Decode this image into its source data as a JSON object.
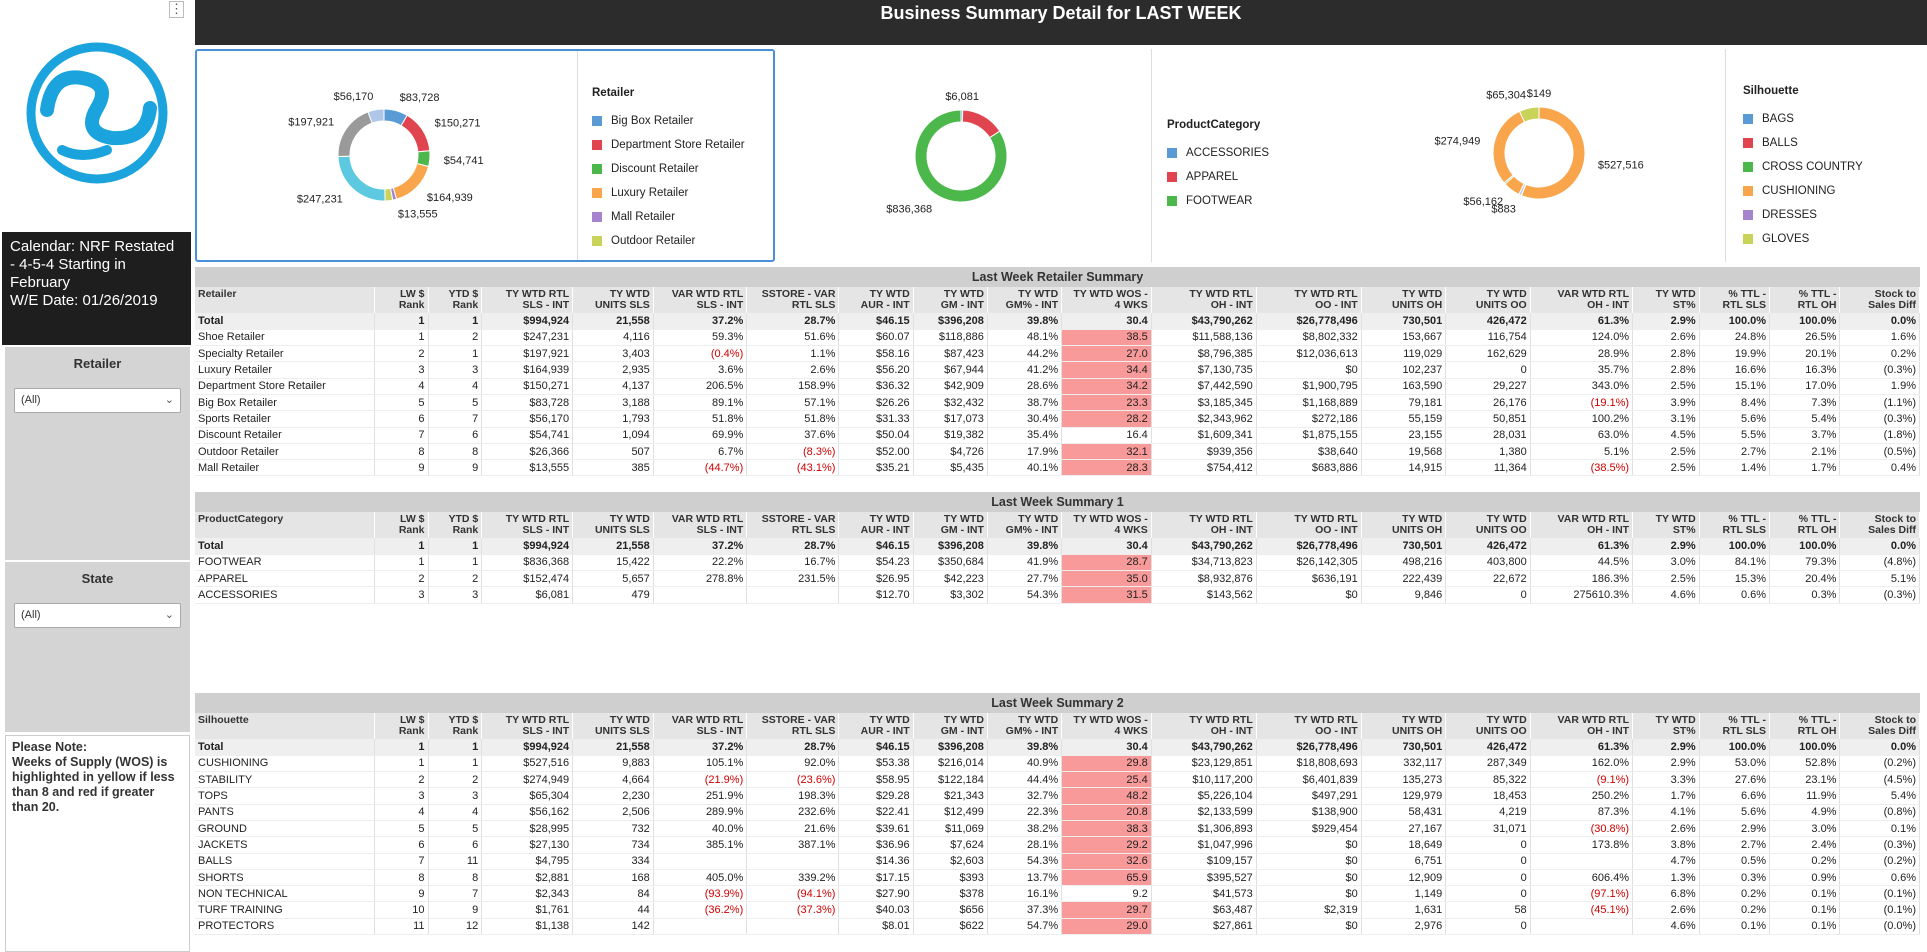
{
  "header": {
    "title": "Business Summary Detail for LAST WEEK"
  },
  "sidebar": {
    "menu_icon": "⋮",
    "calendar_text": "Calendar: NRF Restated - 4-5-4 Starting in February",
    "we_date": "W/E Date: 01/26/2019",
    "filters": [
      {
        "title": "Retailer",
        "value": "(All)"
      },
      {
        "title": "State",
        "value": "(All)"
      }
    ],
    "note": "Please Note:\nWeeks of Supply (WOS) is highlighted in yellow if less than 8 and red if greater than 20."
  },
  "colors": {
    "blue": "#5b9bd5",
    "red": "#e0454f",
    "green": "#4cb84c",
    "orange": "#f9a54b",
    "purple": "#a583cf",
    "olive": "#c9d35a",
    "cyan": "#5dc9e0",
    "gray": "#9a9a9a",
    "lightblue": "#aec7e8",
    "highlight": "#f99a9a"
  },
  "charts": [
    {
      "legend_title": "Retailer",
      "legend": [
        {
          "label": "Big Box Retailer",
          "color": "#5b9bd5"
        },
        {
          "label": "Department Store Retailer",
          "color": "#e0454f"
        },
        {
          "label": "Discount Retailer",
          "color": "#4cb84c"
        },
        {
          "label": "Luxury Retailer",
          "color": "#f9a54b"
        },
        {
          "label": "Mall Retailer",
          "color": "#a583cf"
        },
        {
          "label": "Outdoor Retailer",
          "color": "#c9d35a"
        }
      ],
      "slices": [
        {
          "value": 83728,
          "label": "$83,728",
          "color": "#5b9bd5"
        },
        {
          "value": 150271,
          "label": "$150,271",
          "color": "#e0454f"
        },
        {
          "value": 54741,
          "label": "$54,741",
          "color": "#4cb84c"
        },
        {
          "value": 164939,
          "label": "$164,939",
          "color": "#f9a54b"
        },
        {
          "value": 13555,
          "label": "$13,555",
          "color": "#a583cf"
        },
        {
          "value": 26366,
          "label": "",
          "color": "#c9d35a"
        },
        {
          "value": 247231,
          "label": "$247,231",
          "color": "#5dc9e0"
        },
        {
          "value": 197921,
          "label": "$197,921",
          "color": "#9a9a9a"
        },
        {
          "value": 56170,
          "label": "$56,170",
          "color": "#aec7e8"
        }
      ]
    },
    {
      "legend_title": "ProductCategory",
      "legend": [
        {
          "label": "ACCESSORIES",
          "color": "#5b9bd5"
        },
        {
          "label": "APPAREL",
          "color": "#e0454f"
        },
        {
          "label": "FOOTWEAR",
          "color": "#4cb84c"
        }
      ],
      "slices": [
        {
          "value": 6081,
          "label": "$6,081",
          "color": "#5b9bd5"
        },
        {
          "value": 152474,
          "label": "",
          "color": "#e0454f"
        },
        {
          "value": 836368,
          "label": "$836,368",
          "color": "#4cb84c"
        }
      ]
    },
    {
      "legend_title": "Silhouette",
      "legend": [
        {
          "label": "BAGS",
          "color": "#5b9bd5"
        },
        {
          "label": "BALLS",
          "color": "#e0454f"
        },
        {
          "label": "CROSS COUNTRY",
          "color": "#4cb84c"
        },
        {
          "label": "CUSHIONING",
          "color": "#f9a54b"
        },
        {
          "label": "DRESSES",
          "color": "#a583cf"
        },
        {
          "label": "GLOVES",
          "color": "#c9d35a"
        }
      ],
      "slices": [
        {
          "value": 149,
          "label": "$149",
          "color": "#5b9bd5"
        },
        {
          "value": 527516,
          "label": "$527,516",
          "color": "#f9a54b"
        },
        {
          "value": 883,
          "label": "$883",
          "color": "#5dc9e0"
        },
        {
          "value": 8000,
          "label": "",
          "color": "#aec7e8"
        },
        {
          "value": 56162,
          "label": "$56,162",
          "color": "#f9a54b"
        },
        {
          "value": 5000,
          "label": "",
          "color": "#4cb84c"
        },
        {
          "value": 274949,
          "label": "$274,949",
          "color": "#f9a54b"
        },
        {
          "value": 65304,
          "label": "$65,304",
          "color": "#c9d35a"
        }
      ]
    }
  ],
  "columns": [
    "LW $\nRank",
    "YTD $\nRank",
    "TY WTD RTL\nSLS - INT",
    "TY WTD\nUNITS SLS",
    "VAR WTD RTL\nSLS - INT",
    "SSTORE - VAR\nRTL SLS",
    "TY WTD\nAUR - INT",
    "TY WTD\nGM - INT",
    "TY WTD\nGM% - INT",
    "TY WTD WOS -\n4 WKS",
    "TY WTD RTL\nOH - INT",
    "TY WTD RTL\nOO - INT",
    "TY WTD\nUNITS OH",
    "TY WTD\nUNITS OO",
    "VAR WTD RTL\nOH - INT",
    "TY WTD\nST%",
    "% TTL -\nRTL SLS",
    "% TTL -\nRTL OH",
    "Stock to\nSales Diff"
  ],
  "tables": [
    {
      "title": "Last Week Retailer Summary",
      "dim": "Retailer",
      "rows": [
        [
          "Total",
          "1",
          "1",
          "$994,924",
          "21,558",
          "37.2%",
          "28.7%",
          "$46.15",
          "$396,208",
          "39.8%",
          "30.4",
          "$43,790,262",
          "$26,778,496",
          "730,501",
          "426,472",
          "61.3%",
          "2.9%",
          "100.0%",
          "100.0%",
          "0.0%"
        ],
        [
          "Shoe Retailer",
          "1",
          "2",
          "$247,231",
          "4,116",
          "59.3%",
          "51.6%",
          "$60.07",
          "$118,886",
          "48.1%",
          "38.5",
          "$11,588,136",
          "$8,802,332",
          "153,667",
          "116,754",
          "124.0%",
          "2.6%",
          "24.8%",
          "26.5%",
          "1.6%"
        ],
        [
          "Specialty Retailer",
          "2",
          "1",
          "$197,921",
          "3,403",
          "(0.4%)",
          "1.1%",
          "$58.16",
          "$87,423",
          "44.2%",
          "27.0",
          "$8,796,385",
          "$12,036,613",
          "119,029",
          "162,629",
          "28.9%",
          "2.8%",
          "19.9%",
          "20.1%",
          "0.2%"
        ],
        [
          "Luxury Retailer",
          "3",
          "3",
          "$164,939",
          "2,935",
          "3.6%",
          "2.6%",
          "$56.20",
          "$67,944",
          "41.2%",
          "34.4",
          "$7,130,735",
          "$0",
          "102,237",
          "0",
          "35.7%",
          "2.8%",
          "16.6%",
          "16.3%",
          "(0.3%)"
        ],
        [
          "Department Store Retailer",
          "4",
          "4",
          "$150,271",
          "4,137",
          "206.5%",
          "158.9%",
          "$36.32",
          "$42,909",
          "28.6%",
          "34.2",
          "$7,442,590",
          "$1,900,795",
          "163,590",
          "29,227",
          "343.0%",
          "2.5%",
          "15.1%",
          "17.0%",
          "1.9%"
        ],
        [
          "Big Box Retailer",
          "5",
          "5",
          "$83,728",
          "3,188",
          "89.1%",
          "57.1%",
          "$26.26",
          "$32,432",
          "38.7%",
          "23.3",
          "$3,185,345",
          "$1,168,889",
          "79,181",
          "26,176",
          "(19.1%)",
          "3.9%",
          "8.4%",
          "7.3%",
          "(1.1%)"
        ],
        [
          "Sports Retailer",
          "6",
          "7",
          "$56,170",
          "1,793",
          "51.8%",
          "51.8%",
          "$31.33",
          "$17,073",
          "30.4%",
          "28.2",
          "$2,343,962",
          "$272,186",
          "55,159",
          "50,851",
          "100.2%",
          "3.1%",
          "5.6%",
          "5.4%",
          "(0.3%)"
        ],
        [
          "Discount Retailer",
          "7",
          "6",
          "$54,741",
          "1,094",
          "69.9%",
          "37.6%",
          "$50.04",
          "$19,382",
          "35.4%",
          "16.4",
          "$1,609,341",
          "$1,875,155",
          "23,155",
          "28,031",
          "63.0%",
          "4.5%",
          "5.5%",
          "3.7%",
          "(1.8%)"
        ],
        [
          "Outdoor Retailer",
          "8",
          "8",
          "$26,366",
          "507",
          "6.7%",
          "(8.3%)",
          "$52.00",
          "$4,726",
          "17.9%",
          "32.1",
          "$939,356",
          "$38,640",
          "19,568",
          "1,380",
          "5.1%",
          "2.5%",
          "2.7%",
          "2.1%",
          "(0.5%)"
        ],
        [
          "Mall Retailer",
          "9",
          "9",
          "$13,555",
          "385",
          "(44.7%)",
          "(43.1%)",
          "$35.21",
          "$5,435",
          "40.1%",
          "28.3",
          "$754,412",
          "$683,886",
          "14,915",
          "11,364",
          "(38.5%)",
          "2.5%",
          "1.4%",
          "1.7%",
          "0.4%"
        ]
      ]
    },
    {
      "title": "Last Week Summary 1",
      "dim": "ProductCategory",
      "rows": [
        [
          "Total",
          "1",
          "1",
          "$994,924",
          "21,558",
          "37.2%",
          "28.7%",
          "$46.15",
          "$396,208",
          "39.8%",
          "30.4",
          "$43,790,262",
          "$26,778,496",
          "730,501",
          "426,472",
          "61.3%",
          "2.9%",
          "100.0%",
          "100.0%",
          "0.0%"
        ],
        [
          "FOOTWEAR",
          "1",
          "1",
          "$836,368",
          "15,422",
          "22.2%",
          "16.7%",
          "$54.23",
          "$350,684",
          "41.9%",
          "28.7",
          "$34,713,823",
          "$26,142,305",
          "498,216",
          "403,800",
          "44.5%",
          "3.0%",
          "84.1%",
          "79.3%",
          "(4.8%)"
        ],
        [
          "APPAREL",
          "2",
          "2",
          "$152,474",
          "5,657",
          "278.8%",
          "231.5%",
          "$26.95",
          "$42,223",
          "27.7%",
          "35.0",
          "$8,932,876",
          "$636,191",
          "222,439",
          "22,672",
          "186.3%",
          "2.5%",
          "15.3%",
          "20.4%",
          "5.1%"
        ],
        [
          "ACCESSORIES",
          "3",
          "3",
          "$6,081",
          "479",
          "",
          "",
          "$12.70",
          "$3,302",
          "54.3%",
          "31.5",
          "$143,562",
          "$0",
          "9,846",
          "0",
          "275610.3%",
          "4.6%",
          "0.6%",
          "0.3%",
          "(0.3%)"
        ]
      ]
    },
    {
      "title": "Last Week Summary 2",
      "dim": "Silhouette",
      "rows": [
        [
          "Total",
          "1",
          "1",
          "$994,924",
          "21,558",
          "37.2%",
          "28.7%",
          "$46.15",
          "$396,208",
          "39.8%",
          "30.4",
          "$43,790,262",
          "$26,778,496",
          "730,501",
          "426,472",
          "61.3%",
          "2.9%",
          "100.0%",
          "100.0%",
          "0.0%"
        ],
        [
          "CUSHIONING",
          "1",
          "1",
          "$527,516",
          "9,883",
          "105.1%",
          "92.0%",
          "$53.38",
          "$216,014",
          "40.9%",
          "29.8",
          "$23,129,851",
          "$18,808,693",
          "332,117",
          "287,349",
          "162.0%",
          "2.9%",
          "53.0%",
          "52.8%",
          "(0.2%)"
        ],
        [
          "STABILITY",
          "2",
          "2",
          "$274,949",
          "4,664",
          "(21.9%)",
          "(23.6%)",
          "$58.95",
          "$122,184",
          "44.4%",
          "25.4",
          "$10,117,200",
          "$6,401,839",
          "135,273",
          "85,322",
          "(9.1%)",
          "3.3%",
          "27.6%",
          "23.1%",
          "(4.5%)"
        ],
        [
          "TOPS",
          "3",
          "3",
          "$65,304",
          "2,230",
          "251.9%",
          "198.3%",
          "$29.28",
          "$21,343",
          "32.7%",
          "48.2",
          "$5,226,104",
          "$497,291",
          "129,979",
          "18,453",
          "250.2%",
          "1.7%",
          "6.6%",
          "11.9%",
          "5.4%"
        ],
        [
          "PANTS",
          "4",
          "4",
          "$56,162",
          "2,506",
          "289.9%",
          "232.6%",
          "$22.41",
          "$12,499",
          "22.3%",
          "20.8",
          "$2,133,599",
          "$138,900",
          "58,431",
          "4,219",
          "87.3%",
          "4.1%",
          "5.6%",
          "4.9%",
          "(0.8%)"
        ],
        [
          "GROUND",
          "5",
          "5",
          "$28,995",
          "732",
          "40.0%",
          "21.6%",
          "$39.61",
          "$11,069",
          "38.2%",
          "38.3",
          "$1,306,893",
          "$929,454",
          "27,167",
          "31,071",
          "(30.8%)",
          "2.6%",
          "2.9%",
          "3.0%",
          "0.1%"
        ],
        [
          "JACKETS",
          "6",
          "6",
          "$27,130",
          "734",
          "385.1%",
          "387.1%",
          "$36.96",
          "$7,624",
          "28.1%",
          "29.2",
          "$1,047,996",
          "$0",
          "18,649",
          "0",
          "173.8%",
          "3.8%",
          "2.7%",
          "2.4%",
          "(0.3%)"
        ],
        [
          "BALLS",
          "7",
          "11",
          "$4,795",
          "334",
          "",
          "",
          "$14.36",
          "$2,603",
          "54.3%",
          "32.6",
          "$109,157",
          "$0",
          "6,751",
          "0",
          "",
          "4.7%",
          "0.5%",
          "0.2%",
          "(0.2%)"
        ],
        [
          "SHORTS",
          "8",
          "8",
          "$2,881",
          "168",
          "405.0%",
          "339.2%",
          "$17.15",
          "$393",
          "13.7%",
          "65.9",
          "$395,527",
          "$0",
          "12,909",
          "0",
          "606.4%",
          "1.3%",
          "0.3%",
          "0.9%",
          "0.6%"
        ],
        [
          "NON TECHNICAL",
          "9",
          "7",
          "$2,343",
          "84",
          "(93.9%)",
          "(94.1%)",
          "$27.90",
          "$378",
          "16.1%",
          "9.2",
          "$41,573",
          "$0",
          "1,149",
          "0",
          "(97.1%)",
          "6.8%",
          "0.2%",
          "0.1%",
          "(0.1%)"
        ],
        [
          "TURF TRAINING",
          "10",
          "9",
          "$1,761",
          "44",
          "(36.2%)",
          "(37.3%)",
          "$40.03",
          "$656",
          "37.3%",
          "29.7",
          "$63,487",
          "$2,319",
          "1,631",
          "58",
          "(45.1%)",
          "2.6%",
          "0.2%",
          "0.1%",
          "(0.1%)"
        ],
        [
          "PROTECTORS",
          "11",
          "12",
          "$1,138",
          "142",
          "",
          "",
          "$8.01",
          "$622",
          "54.7%",
          "29.0",
          "$27,861",
          "$0",
          "2,976",
          "0",
          "",
          "4.6%",
          "0.1%",
          "0.1%",
          "(0.0%)"
        ]
      ]
    }
  ]
}
